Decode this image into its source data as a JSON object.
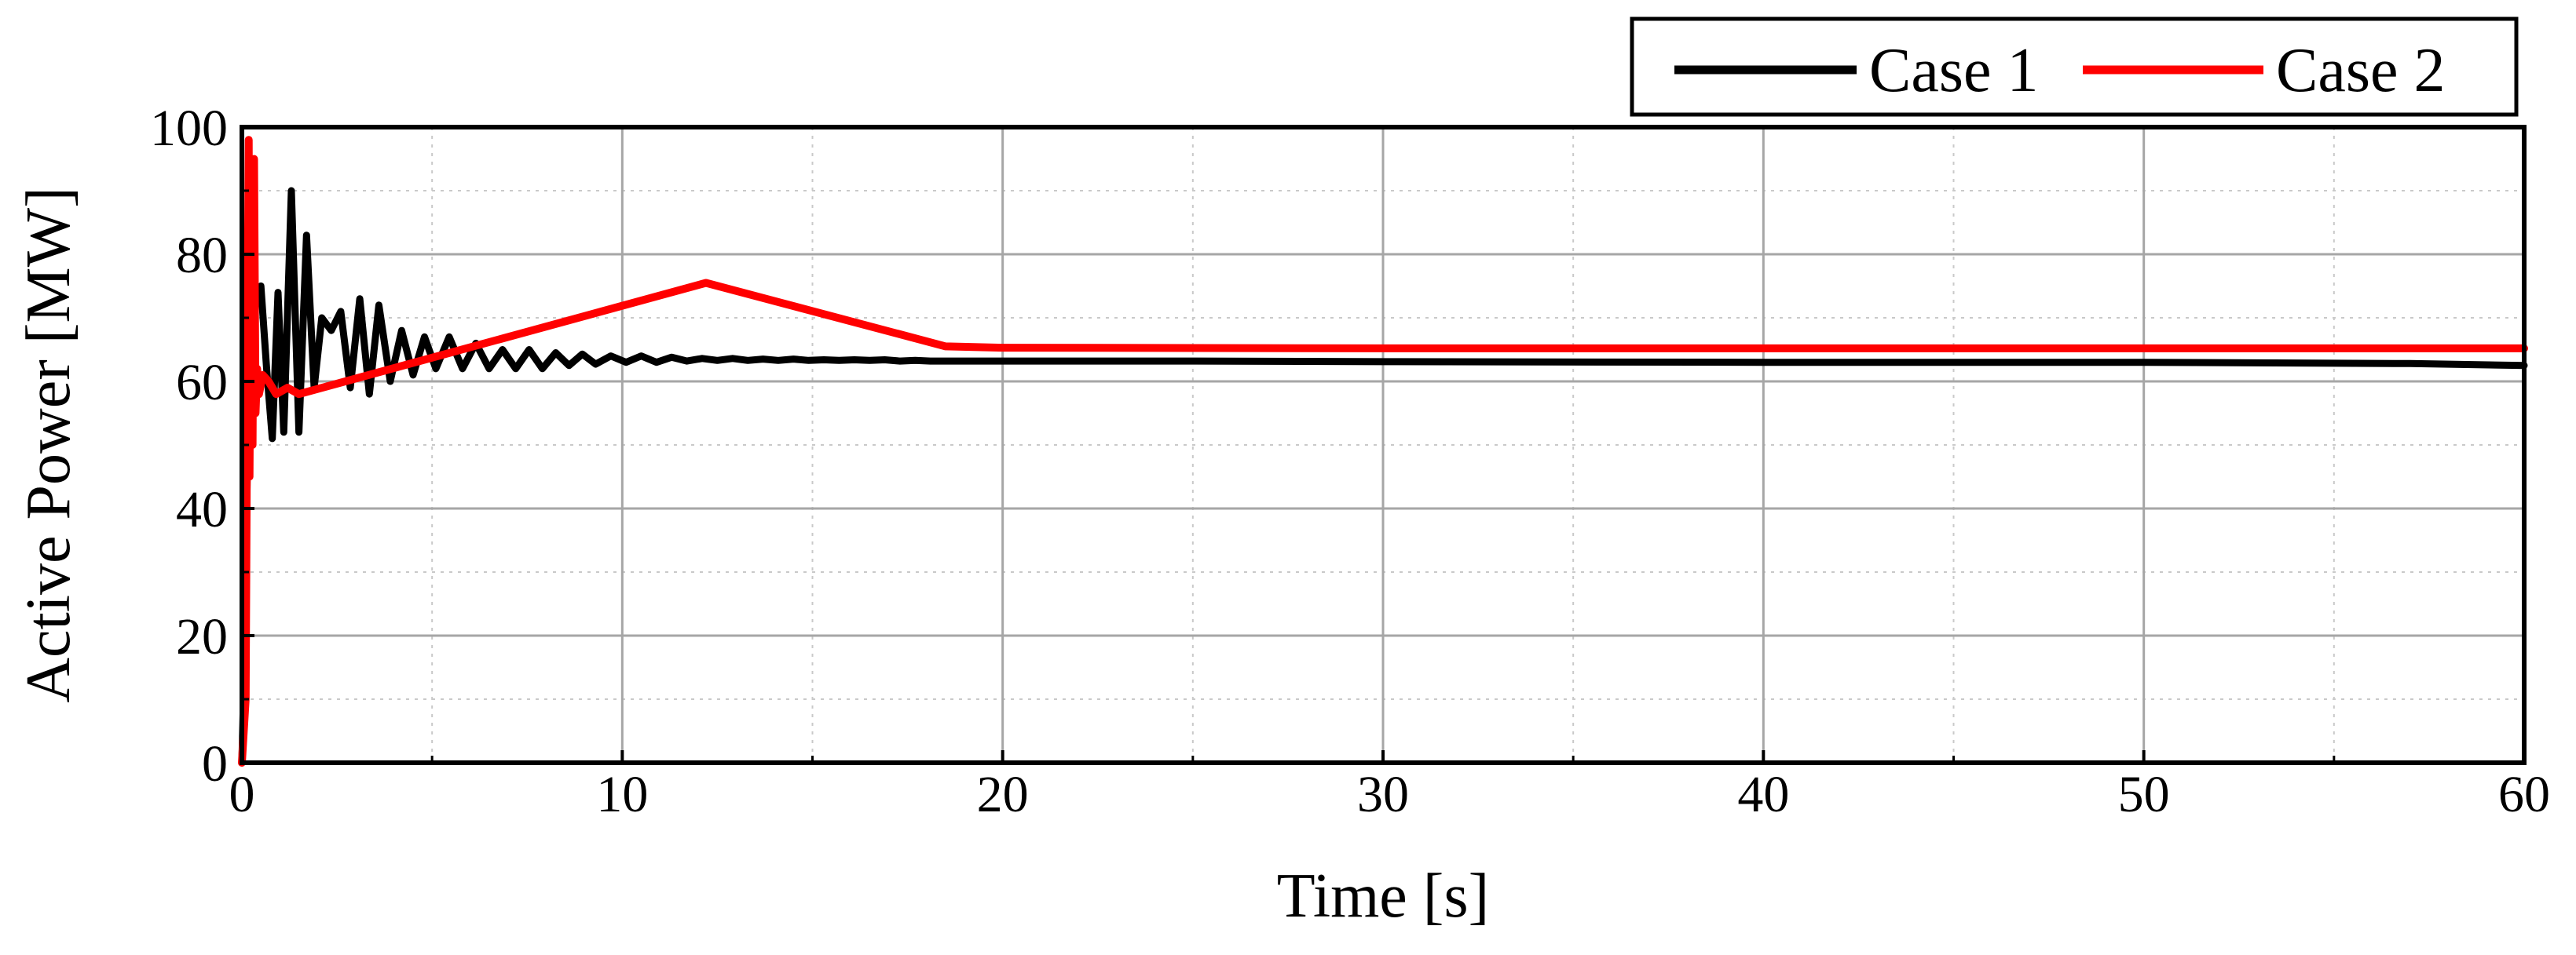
{
  "chart_data": {
    "type": "line",
    "title": "",
    "xlabel": "Time [s]",
    "ylabel": "Active Power [MW]",
    "xlim": [
      0,
      60
    ],
    "ylim": [
      0,
      100
    ],
    "xticks": [
      0,
      10,
      20,
      30,
      40,
      50,
      60
    ],
    "yticks": [
      0,
      20,
      40,
      60,
      80,
      100
    ],
    "grid": true,
    "legend": {
      "position": "top-right",
      "orientation": "horizontal"
    },
    "series": [
      {
        "name": "Case 1",
        "color": "#000000",
        "x": [
          0,
          0.08,
          0.15,
          0.22,
          0.35,
          0.5,
          0.65,
          0.8,
          0.95,
          1.1,
          1.3,
          1.5,
          1.7,
          1.9,
          2.1,
          2.35,
          2.6,
          2.85,
          3.1,
          3.35,
          3.6,
          3.9,
          4.2,
          4.5,
          4.8,
          5.1,
          5.45,
          5.8,
          6.15,
          6.5,
          6.85,
          7.2,
          7.55,
          7.9,
          8.25,
          8.6,
          8.95,
          9.3,
          9.7,
          10.1,
          10.5,
          10.9,
          11.3,
          11.7,
          12.1,
          12.5,
          12.9,
          13.3,
          13.7,
          14.1,
          14.5,
          14.9,
          15.3,
          15.7,
          16.1,
          16.5,
          16.9,
          17.3,
          17.7,
          18.1,
          18.5,
          20,
          25,
          30,
          40,
          50,
          57,
          60
        ],
        "y": [
          0,
          20,
          50,
          62,
          72,
          75,
          62,
          51,
          74,
          52,
          90,
          52,
          83,
          59,
          70,
          68,
          71,
          59,
          73,
          58,
          72,
          60,
          68,
          61,
          67,
          62,
          67,
          62,
          66,
          62,
          65,
          62,
          65,
          62,
          64.5,
          62.5,
          64.3,
          62.7,
          64,
          63,
          64,
          63,
          63.8,
          63.2,
          63.6,
          63.3,
          63.6,
          63.3,
          63.5,
          63.3,
          63.5,
          63.3,
          63.4,
          63.3,
          63.4,
          63.3,
          63.4,
          63.2,
          63.3,
          63.2,
          63.2,
          63.2,
          63.2,
          63.1,
          63.0,
          63.0,
          62.8,
          62.5
        ]
      },
      {
        "name": "Case 2",
        "color": "#ff0000",
        "x": [
          0,
          0.1,
          0.14,
          0.18,
          0.2,
          0.24,
          0.28,
          0.32,
          0.36,
          0.4,
          0.45,
          0.55,
          0.7,
          0.9,
          1.2,
          1.5,
          12.2,
          18.5,
          20,
          30,
          40,
          50,
          60
        ],
        "y": [
          0,
          10,
          60,
          98,
          45,
          85,
          50,
          95,
          55,
          62,
          58,
          61,
          60,
          58,
          59,
          58,
          75.5,
          65.5,
          65.3,
          65.2,
          65.2,
          65.2,
          65.2
        ]
      }
    ]
  }
}
